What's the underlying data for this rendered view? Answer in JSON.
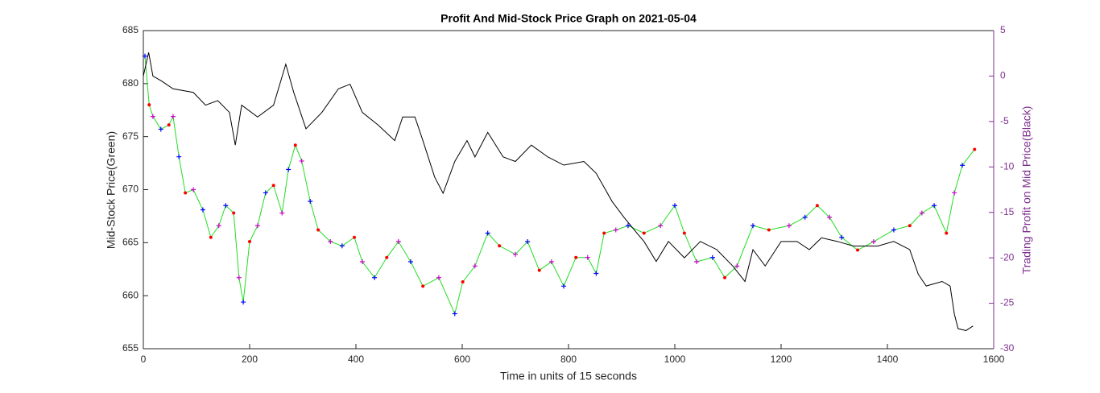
{
  "chart_data": {
    "type": "line",
    "title": "Profit And Mid-Stock Price Graph on 2021-05-04",
    "xlabel": "Time in units of 15 seconds",
    "ylabel": "Mid-Stock Price(Green)",
    "y2label": "Trading Profit on Mid Price(Black)",
    "xlim": [
      0,
      1600
    ],
    "xticks": [
      0,
      200,
      400,
      600,
      800,
      1000,
      1200,
      1400,
      1600
    ],
    "ylim": [
      655,
      685
    ],
    "yticks": [
      655,
      660,
      665,
      670,
      675,
      680,
      685
    ],
    "y2lim": [
      -30,
      5
    ],
    "y2ticks": [
      -30,
      -25,
      -20,
      -15,
      -10,
      -5,
      0,
      5
    ],
    "y2color": "#7e2f8e",
    "series": [
      {
        "name": "Mid-Stock Price",
        "color": "#22dd22",
        "axis": "y",
        "markers": [
          "#0000ff",
          "#ff0000",
          "#cc00cc"
        ],
        "x": [
          3,
          11,
          18,
          33,
          48,
          56,
          67,
          79,
          94,
          112,
          127,
          142,
          155,
          170,
          180,
          188,
          200,
          215,
          230,
          245,
          261,
          273,
          286,
          298,
          314,
          329,
          352,
          374,
          397,
          412,
          435,
          458,
          480,
          503,
          526,
          556,
          586,
          601,
          624,
          648,
          670,
          700,
          723,
          745,
          768,
          791,
          814,
          836,
          852,
          867,
          889,
          912,
          942,
          973,
          1000,
          1018,
          1041,
          1071,
          1094,
          1117,
          1147,
          1177,
          1215,
          1245,
          1268,
          1291,
          1314,
          1344,
          1374,
          1412,
          1442,
          1465,
          1488,
          1511,
          1526,
          1541,
          1564
        ],
        "values": [
          682.6,
          678,
          676.9,
          675.7,
          676.1,
          676.9,
          673.1,
          669.7,
          670,
          668.1,
          665.5,
          666.6,
          668.5,
          667.8,
          661.7,
          659.4,
          665.1,
          666.6,
          669.7,
          670.4,
          667.8,
          671.9,
          674.2,
          672.7,
          668.9,
          666.2,
          665.1,
          664.7,
          665.5,
          663.2,
          661.7,
          663.6,
          665.1,
          663.2,
          660.9,
          661.7,
          658.3,
          661.3,
          662.8,
          665.9,
          664.7,
          663.9,
          665.1,
          662.4,
          663.2,
          660.9,
          663.6,
          663.6,
          662.1,
          665.9,
          666.2,
          666.6,
          665.9,
          666.6,
          668.5,
          665.9,
          663.2,
          663.6,
          661.7,
          662.8,
          666.6,
          666.2,
          666.6,
          667.4,
          668.5,
          667.4,
          665.5,
          664.3,
          665.1,
          666.2,
          666.6,
          667.8,
          668.5,
          665.9,
          669.7,
          672.3,
          673.8
        ]
      },
      {
        "name": "Trading Profit",
        "color": "#000000",
        "axis": "y2",
        "x": [
          0,
          10,
          18,
          33,
          56,
          94,
          117,
          140,
          162,
          173,
          185,
          215,
          245,
          268,
          283,
          306,
          336,
          367,
          389,
          412,
          442,
          473,
          488,
          511,
          526,
          548,
          564,
          586,
          609,
          624,
          648,
          677,
          700,
          730,
          761,
          791,
          829,
          852,
          882,
          905,
          929,
          942,
          965,
          988,
          1018,
          1048,
          1079,
          1109,
          1132,
          1147,
          1170,
          1200,
          1230,
          1253,
          1276,
          1306,
          1336,
          1382,
          1412,
          1442,
          1458,
          1473,
          1503,
          1518,
          1526,
          1533,
          1548,
          1561
        ],
        "values": [
          0,
          2.6,
          0,
          -0.5,
          -1.4,
          -1.8,
          -3.2,
          -2.7,
          -4,
          -7.6,
          -3.2,
          -4.5,
          -3.2,
          1.3,
          -1.8,
          -5.8,
          -4,
          -1.4,
          -0.9,
          -4,
          -5.4,
          -7.1,
          -4.5,
          -4.5,
          -7.1,
          -11.1,
          -12.9,
          -9.4,
          -7.1,
          -8.9,
          -6.2,
          -8.9,
          -9.4,
          -7.6,
          -8.9,
          -9.8,
          -9.4,
          -10.7,
          -13.8,
          -15.6,
          -17.3,
          -18.2,
          -20.4,
          -18.2,
          -20,
          -18.2,
          -19.1,
          -20.9,
          -22.6,
          -19.1,
          -20.9,
          -18.2,
          -18.2,
          -19.1,
          -17.8,
          -18.2,
          -18.7,
          -18.7,
          -18.2,
          -19.1,
          -21.8,
          -23.1,
          -22.6,
          -23.1,
          -26.2,
          -27.8,
          -28,
          -27.5
        ]
      }
    ]
  }
}
